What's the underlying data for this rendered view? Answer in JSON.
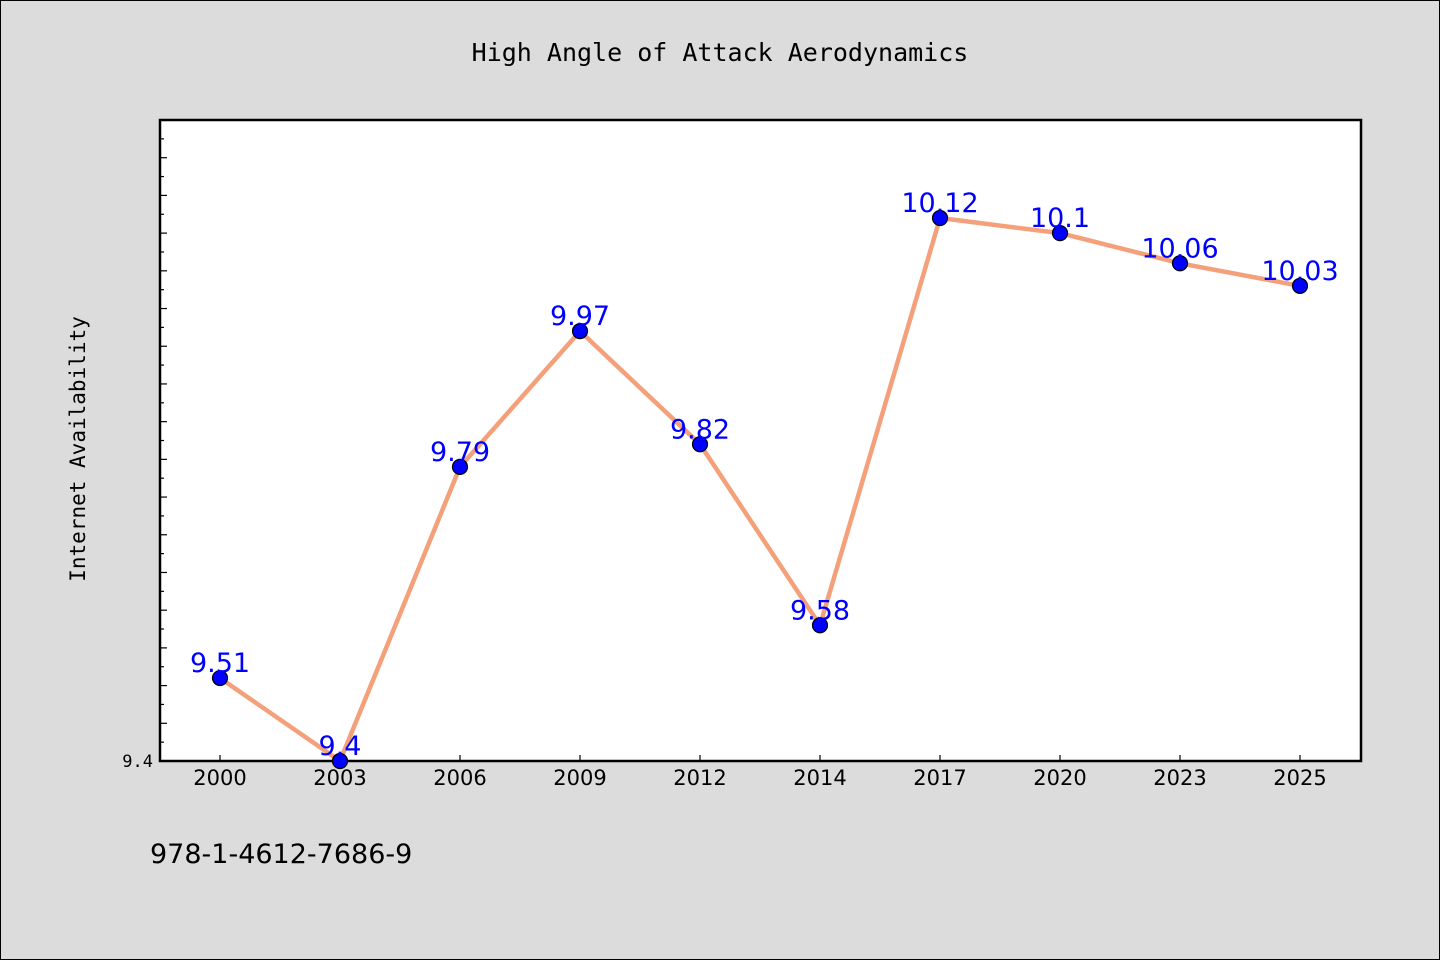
{
  "chart_data": {
    "type": "line",
    "title": "High Angle of Attack Aerodynamics",
    "xlabel": "",
    "ylabel": "Internet Availability",
    "categories": [
      "2000",
      "2003",
      "2006",
      "2009",
      "2012",
      "2014",
      "2017",
      "2020",
      "2023",
      "2025"
    ],
    "series": [
      {
        "values": [
          9.51,
          9.4,
          9.79,
          9.97,
          9.82,
          9.58,
          10.12,
          10.1,
          10.06,
          10.03
        ]
      }
    ],
    "data_labels": [
      "9.51",
      "9.4",
      "9.79",
      "9.97",
      "9.82",
      "9.58",
      "10.12",
      "10.1",
      "10.06",
      "10.03"
    ],
    "ylim": [
      9.4,
      10.25
    ],
    "y_tick_labels": [
      "9.4"
    ],
    "grid": false,
    "line_color": "#f4a07a",
    "marker_color": "#0000ff",
    "label_color": "#0000ff"
  },
  "footer_text": "978-1-4612-7686-9"
}
